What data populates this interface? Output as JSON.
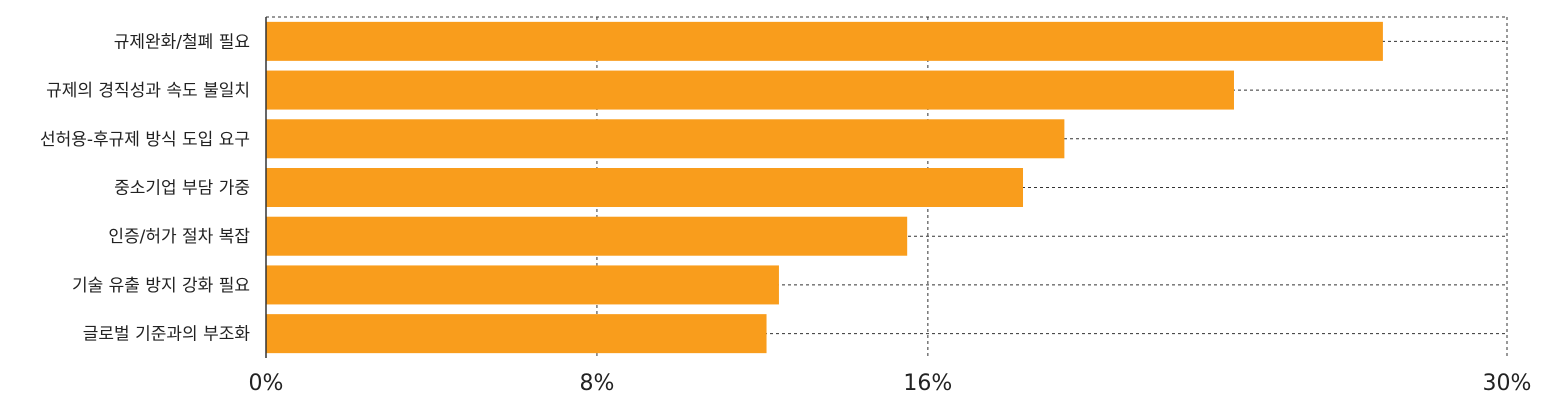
{
  "chart_data": {
    "type": "bar",
    "orientation": "horizontal",
    "categories": [
      "규제완화/철폐 필요",
      "규제의 경직성과 속도 불일치",
      "선허용-후규제 방식 도입 요구",
      "중소기업 부담 가중",
      "인증/허가 절차 복잡",
      "기술 유출 방지 강화 필요",
      "글로벌 기준과의 부조화"
    ],
    "values": [
      27.0,
      23.4,
      19.3,
      18.3,
      15.5,
      12.4,
      12.1
    ],
    "xlim": [
      0,
      30
    ],
    "xticks": [
      0,
      8,
      16,
      30
    ],
    "xtick_labels": [
      "0%",
      "8%",
      "16%",
      "30%"
    ],
    "title": "",
    "xlabel": "",
    "ylabel": "",
    "grid": true,
    "bar_color": "#F99D1C"
  }
}
